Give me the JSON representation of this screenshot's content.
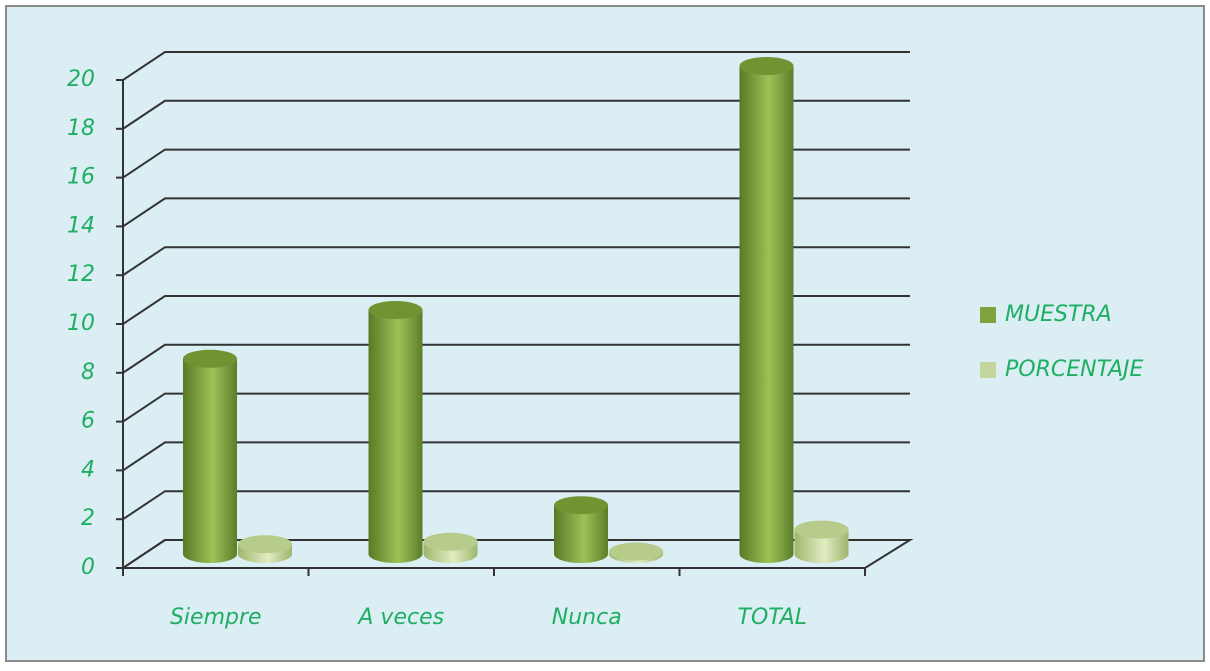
{
  "chart_data": {
    "type": "bar3d",
    "categories": [
      "Siempre",
      "A veces",
      "Nunca",
      "TOTAL"
    ],
    "series": [
      {
        "name": "MUESTRA",
        "color": "#7ea23e",
        "values": [
          8,
          10,
          2,
          20
        ]
      },
      {
        "name": "PORCENTAJE",
        "color": "#c3d69b",
        "values": [
          0.4,
          0.5,
          0.1,
          1
        ]
      }
    ],
    "ylim": [
      0,
      20
    ],
    "yticks": [
      0,
      2,
      4,
      6,
      8,
      10,
      12,
      14,
      16,
      18,
      20
    ],
    "grid": true,
    "legend": "right"
  }
}
